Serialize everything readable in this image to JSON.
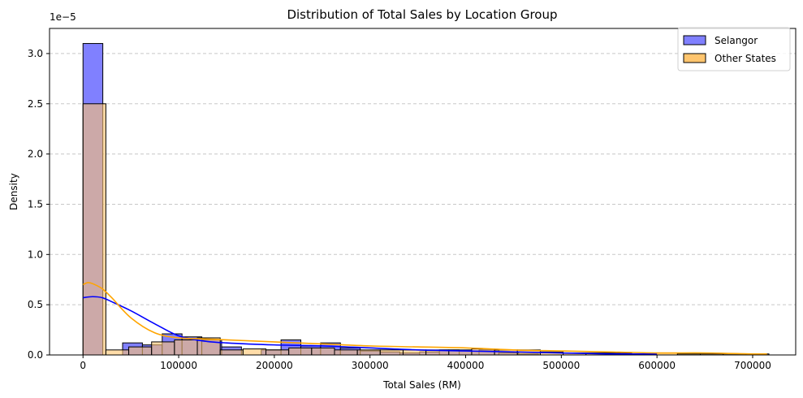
{
  "chart_data": {
    "type": "histogram",
    "title": "Distribution of Total Sales by Location Group",
    "xlabel": "Total Sales (RM)",
    "ylabel": "Density",
    "y_offset_label": "1e−5",
    "xlim": [
      -35000,
      745000
    ],
    "ylim": [
      0,
      3.25
    ],
    "x_ticks": [
      0,
      100000,
      200000,
      300000,
      400000,
      500000,
      600000,
      700000
    ],
    "x_tick_labels": [
      "0",
      "100000",
      "200000",
      "300000",
      "400000",
      "500000",
      "600000",
      "700000"
    ],
    "y_ticks": [
      0,
      0.5,
      1.0,
      1.5,
      2.0,
      2.5,
      3.0
    ],
    "y_tick_labels": [
      "0.0",
      "0.5",
      "1.0",
      "1.5",
      "2.0",
      "2.5",
      "3.0"
    ],
    "y_grid": true,
    "legend_position": "top-right",
    "series": [
      {
        "name": "Selangor",
        "fill_color": "#8080ff",
        "kde_color": "#0000ff",
        "bin_width": 20700,
        "bin_start": 0,
        "values": [
          3.1,
          0,
          0.12,
          0.1,
          0.21,
          0.18,
          0.15,
          0.08,
          0,
          0.05,
          0.15,
          0.09,
          0.12,
          0.07,
          0.04,
          0.03,
          0.02,
          0.03,
          0.05,
          0.04,
          0.05,
          0.02,
          0.01,
          0,
          0,
          0,
          0,
          0.01,
          0
        ],
        "kde_x": [
          0,
          10000,
          20000,
          30000,
          50000,
          75000,
          100000,
          125000,
          150000,
          200000,
          250000,
          300000,
          350000,
          400000,
          450000,
          500000,
          550000,
          600000
        ],
        "kde_y": [
          0.57,
          0.58,
          0.57,
          0.53,
          0.44,
          0.31,
          0.19,
          0.14,
          0.12,
          0.1,
          0.09,
          0.07,
          0.05,
          0.04,
          0.03,
          0.02,
          0.01,
          0.01
        ]
      },
      {
        "name": "Other States",
        "fill_color": "#ffc56e",
        "kde_color": "#ffa500",
        "bin_width": 23900,
        "bin_start": 0,
        "values": [
          2.5,
          0.05,
          0.08,
          0.13,
          0.15,
          0.17,
          0.05,
          0.06,
          0.05,
          0.07,
          0.07,
          0.05,
          0.05,
          0.05,
          0.05,
          0.05,
          0.05,
          0.06,
          0.05,
          0.05,
          0.03,
          0.02,
          0.02,
          0.02,
          0.01,
          0.02,
          0.01,
          0.01,
          0.01,
          0.01
        ],
        "kde_x": [
          0,
          5000,
          10000,
          20000,
          30000,
          50000,
          75000,
          100000,
          125000,
          150000,
          200000,
          250000,
          300000,
          350000,
          400000,
          450000,
          500000,
          550000,
          600000,
          650000,
          700000,
          715000
        ],
        "kde_y": [
          0.7,
          0.72,
          0.71,
          0.66,
          0.57,
          0.37,
          0.22,
          0.17,
          0.16,
          0.15,
          0.13,
          0.11,
          0.09,
          0.08,
          0.07,
          0.05,
          0.04,
          0.03,
          0.02,
          0.02,
          0.01,
          0.01
        ]
      }
    ]
  }
}
